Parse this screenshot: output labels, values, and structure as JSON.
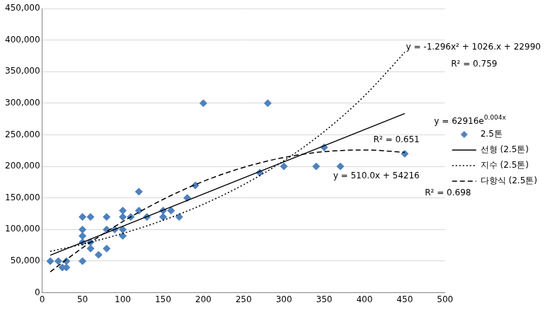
{
  "chart_data": {
    "type": "scatter",
    "series": [
      {
        "name": "2.5톤",
        "color": "#4f81bd",
        "marker": "diamond",
        "x": [
          10,
          20,
          25,
          30,
          30,
          50,
          50,
          50,
          50,
          50,
          60,
          60,
          60,
          70,
          80,
          80,
          80,
          90,
          100,
          100,
          100,
          100,
          110,
          120,
          120,
          130,
          150,
          150,
          160,
          170,
          180,
          190,
          200,
          270,
          280,
          300,
          340,
          350,
          370,
          450
        ],
        "values": [
          50000,
          50000,
          40000,
          40000,
          50000,
          120000,
          100000,
          90000,
          80000,
          50000,
          120000,
          70000,
          80000,
          60000,
          120000,
          100000,
          70000,
          100000,
          130000,
          120000,
          100000,
          90000,
          120000,
          160000,
          130000,
          120000,
          130000,
          120000,
          130000,
          120000,
          150000,
          170000,
          300000,
          190000,
          300000,
          200000,
          200000,
          230000,
          200000,
          220000
        ]
      },
      {
        "name": "선형 (2.5톤)",
        "type": "line",
        "color": "#000000",
        "line_style": "solid",
        "x": [
          10,
          450
        ],
        "values": [
          59316,
          283716
        ]
      },
      {
        "name": "지수 (2.5톤)",
        "type": "line",
        "color": "#000000",
        "line_style": "dotted",
        "x": [
          10,
          50,
          100,
          150,
          200,
          250,
          300,
          350,
          400,
          450
        ],
        "values": [
          65500,
          76800,
          93900,
          114700,
          140100,
          171100,
          209000,
          255200,
          311700,
          380700
        ]
      },
      {
        "name": "다항식 (2.5톤)",
        "type": "line",
        "color": "#000000",
        "line_style": "dashed",
        "x": [
          10,
          50,
          100,
          150,
          200,
          250,
          300,
          350,
          400,
          450
        ],
        "values": [
          33130,
          71050,
          112630,
          147730,
          176350,
          198490,
          214150,
          223330,
          226030,
          222250
        ]
      }
    ],
    "xlim": [
      0,
      500
    ],
    "xticks": [
      0,
      50,
      100,
      150,
      200,
      250,
      300,
      350,
      400,
      450,
      500
    ],
    "ylim": [
      0,
      450000
    ],
    "yticks": [
      0,
      {
        "value": 50000,
        "label": "50,000"
      },
      {
        "value": 100000,
        "label": "100,000"
      },
      {
        "value": 150000,
        "label": "150,000"
      },
      {
        "value": 200000,
        "label": "200,000"
      },
      {
        "value": 250000,
        "label": "250,000"
      },
      {
        "value": 300000,
        "label": "300,000"
      },
      {
        "value": 350000,
        "label": "350,000"
      },
      {
        "value": 400000,
        "label": "400,000"
      },
      {
        "value": 450000,
        "label": "450,000"
      }
    ],
    "grid": "y",
    "legend": "right",
    "annotations": [
      {
        "text": "y = -1.296x² + 1026.x + 22990"
      },
      {
        "text": "R² = 0.759"
      },
      {
        "text": "y = 62916e0.004x",
        "superscript": "0.004x"
      },
      {
        "text": "R² = 0.651"
      },
      {
        "text": "y = 510.0x + 54216"
      },
      {
        "text": "R² = 0.698"
      }
    ]
  }
}
